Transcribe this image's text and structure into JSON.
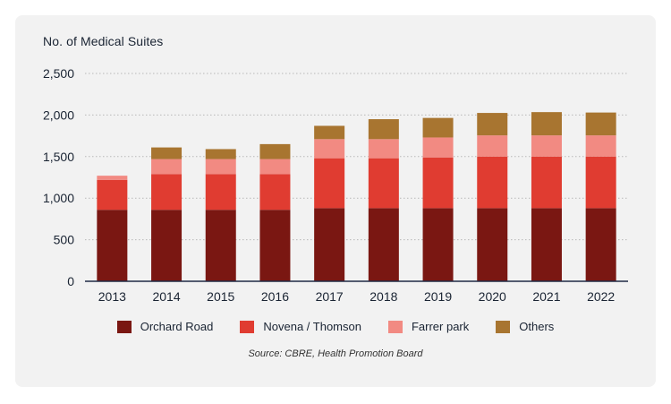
{
  "chart_data": {
    "type": "bar",
    "stacked": true,
    "title": "No. of Medical Suites",
    "source": "Source: CBRE, Health Promotion Board",
    "categories": [
      "2013",
      "2014",
      "2015",
      "2016",
      "2017",
      "2018",
      "2019",
      "2020",
      "2021",
      "2022"
    ],
    "ylim": [
      0,
      2500
    ],
    "yticks": [
      0,
      500,
      1000,
      1500,
      2000,
      2500
    ],
    "ytick_labels": [
      "0",
      "500",
      "1,000",
      "1,500",
      "2,000",
      "2,500"
    ],
    "grid": true,
    "legend_position": "bottom",
    "series": [
      {
        "name": "Orchard Road",
        "color": "#7a1712",
        "values": [
          860,
          860,
          860,
          860,
          880,
          880,
          880,
          880,
          880,
          880
        ]
      },
      {
        "name": "Novena / Thomson",
        "color": "#e03c31",
        "values": [
          360,
          430,
          430,
          430,
          600,
          600,
          610,
          620,
          620,
          620
        ]
      },
      {
        "name": "Farrer park",
        "color": "#f28a82",
        "values": [
          50,
          180,
          180,
          180,
          230,
          230,
          240,
          255,
          255,
          255
        ]
      },
      {
        "name": "Others",
        "color": "#a87530",
        "values": [
          0,
          140,
          120,
          180,
          160,
          240,
          235,
          270,
          280,
          275
        ]
      }
    ]
  }
}
